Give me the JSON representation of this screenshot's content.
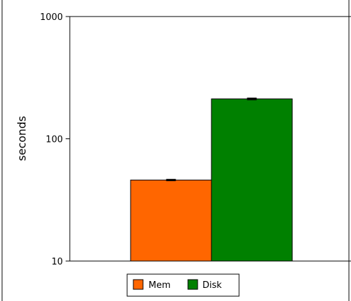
{
  "chart_data": {
    "type": "bar",
    "scale": "log",
    "ylabel": "seconds",
    "ylim": [
      10,
      1000
    ],
    "yticks": [
      10,
      100,
      1000
    ],
    "ytick_labels": [
      "10",
      "100",
      "1000"
    ],
    "grid": false,
    "legend_position": "bottom",
    "series": [
      {
        "name": "Mem",
        "value": 46,
        "error": 0.5,
        "color": "#ff6600"
      },
      {
        "name": "Disk",
        "value": 212,
        "error": 3,
        "color": "#008000"
      }
    ]
  }
}
